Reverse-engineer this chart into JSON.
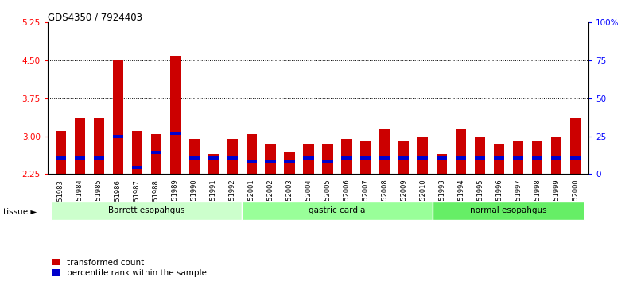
{
  "title": "GDS4350 / 7924403",
  "samples": [
    "GSM851983",
    "GSM851984",
    "GSM851985",
    "GSM851986",
    "GSM851987",
    "GSM851988",
    "GSM851989",
    "GSM851990",
    "GSM851991",
    "GSM851992",
    "GSM852001",
    "GSM852002",
    "GSM852003",
    "GSM852004",
    "GSM852005",
    "GSM852006",
    "GSM852007",
    "GSM852008",
    "GSM852009",
    "GSM852010",
    "GSM851993",
    "GSM851994",
    "GSM851995",
    "GSM851996",
    "GSM851997",
    "GSM851998",
    "GSM851999",
    "GSM852000"
  ],
  "red_values": [
    3.1,
    3.35,
    3.35,
    4.5,
    3.1,
    3.05,
    4.6,
    2.95,
    2.65,
    2.95,
    3.05,
    2.85,
    2.7,
    2.85,
    2.85,
    2.95,
    2.9,
    3.15,
    2.9,
    3.0,
    2.65,
    3.15,
    3.0,
    2.85,
    2.9,
    2.9,
    3.0,
    3.35
  ],
  "blue_values": [
    2.57,
    2.57,
    2.57,
    3.0,
    2.38,
    2.68,
    3.06,
    2.57,
    2.57,
    2.57,
    2.5,
    2.5,
    2.5,
    2.57,
    2.5,
    2.57,
    2.57,
    2.57,
    2.57,
    2.57,
    2.57,
    2.57,
    2.57,
    2.57,
    2.57,
    2.57,
    2.57,
    2.57
  ],
  "groups": [
    {
      "label": "Barrett esopahgus",
      "start": 0,
      "end": 10,
      "color": "#ccffcc"
    },
    {
      "label": "gastric cardia",
      "start": 10,
      "end": 20,
      "color": "#99ff99"
    },
    {
      "label": "normal esopahgus",
      "start": 20,
      "end": 28,
      "color": "#66ee66"
    }
  ],
  "ymin": 2.25,
  "ymax": 5.25,
  "yticks_left": [
    2.25,
    3.0,
    3.75,
    4.5,
    5.25
  ],
  "yticks_right": [
    0,
    25,
    50,
    75,
    100
  ],
  "yticks_right_labels": [
    "0",
    "25",
    "50",
    "75",
    "100%"
  ],
  "hlines": [
    3.0,
    3.75,
    4.5
  ],
  "bar_width": 0.55,
  "red_color": "#cc0000",
  "blue_color": "#0000cc",
  "baseline": 2.25
}
